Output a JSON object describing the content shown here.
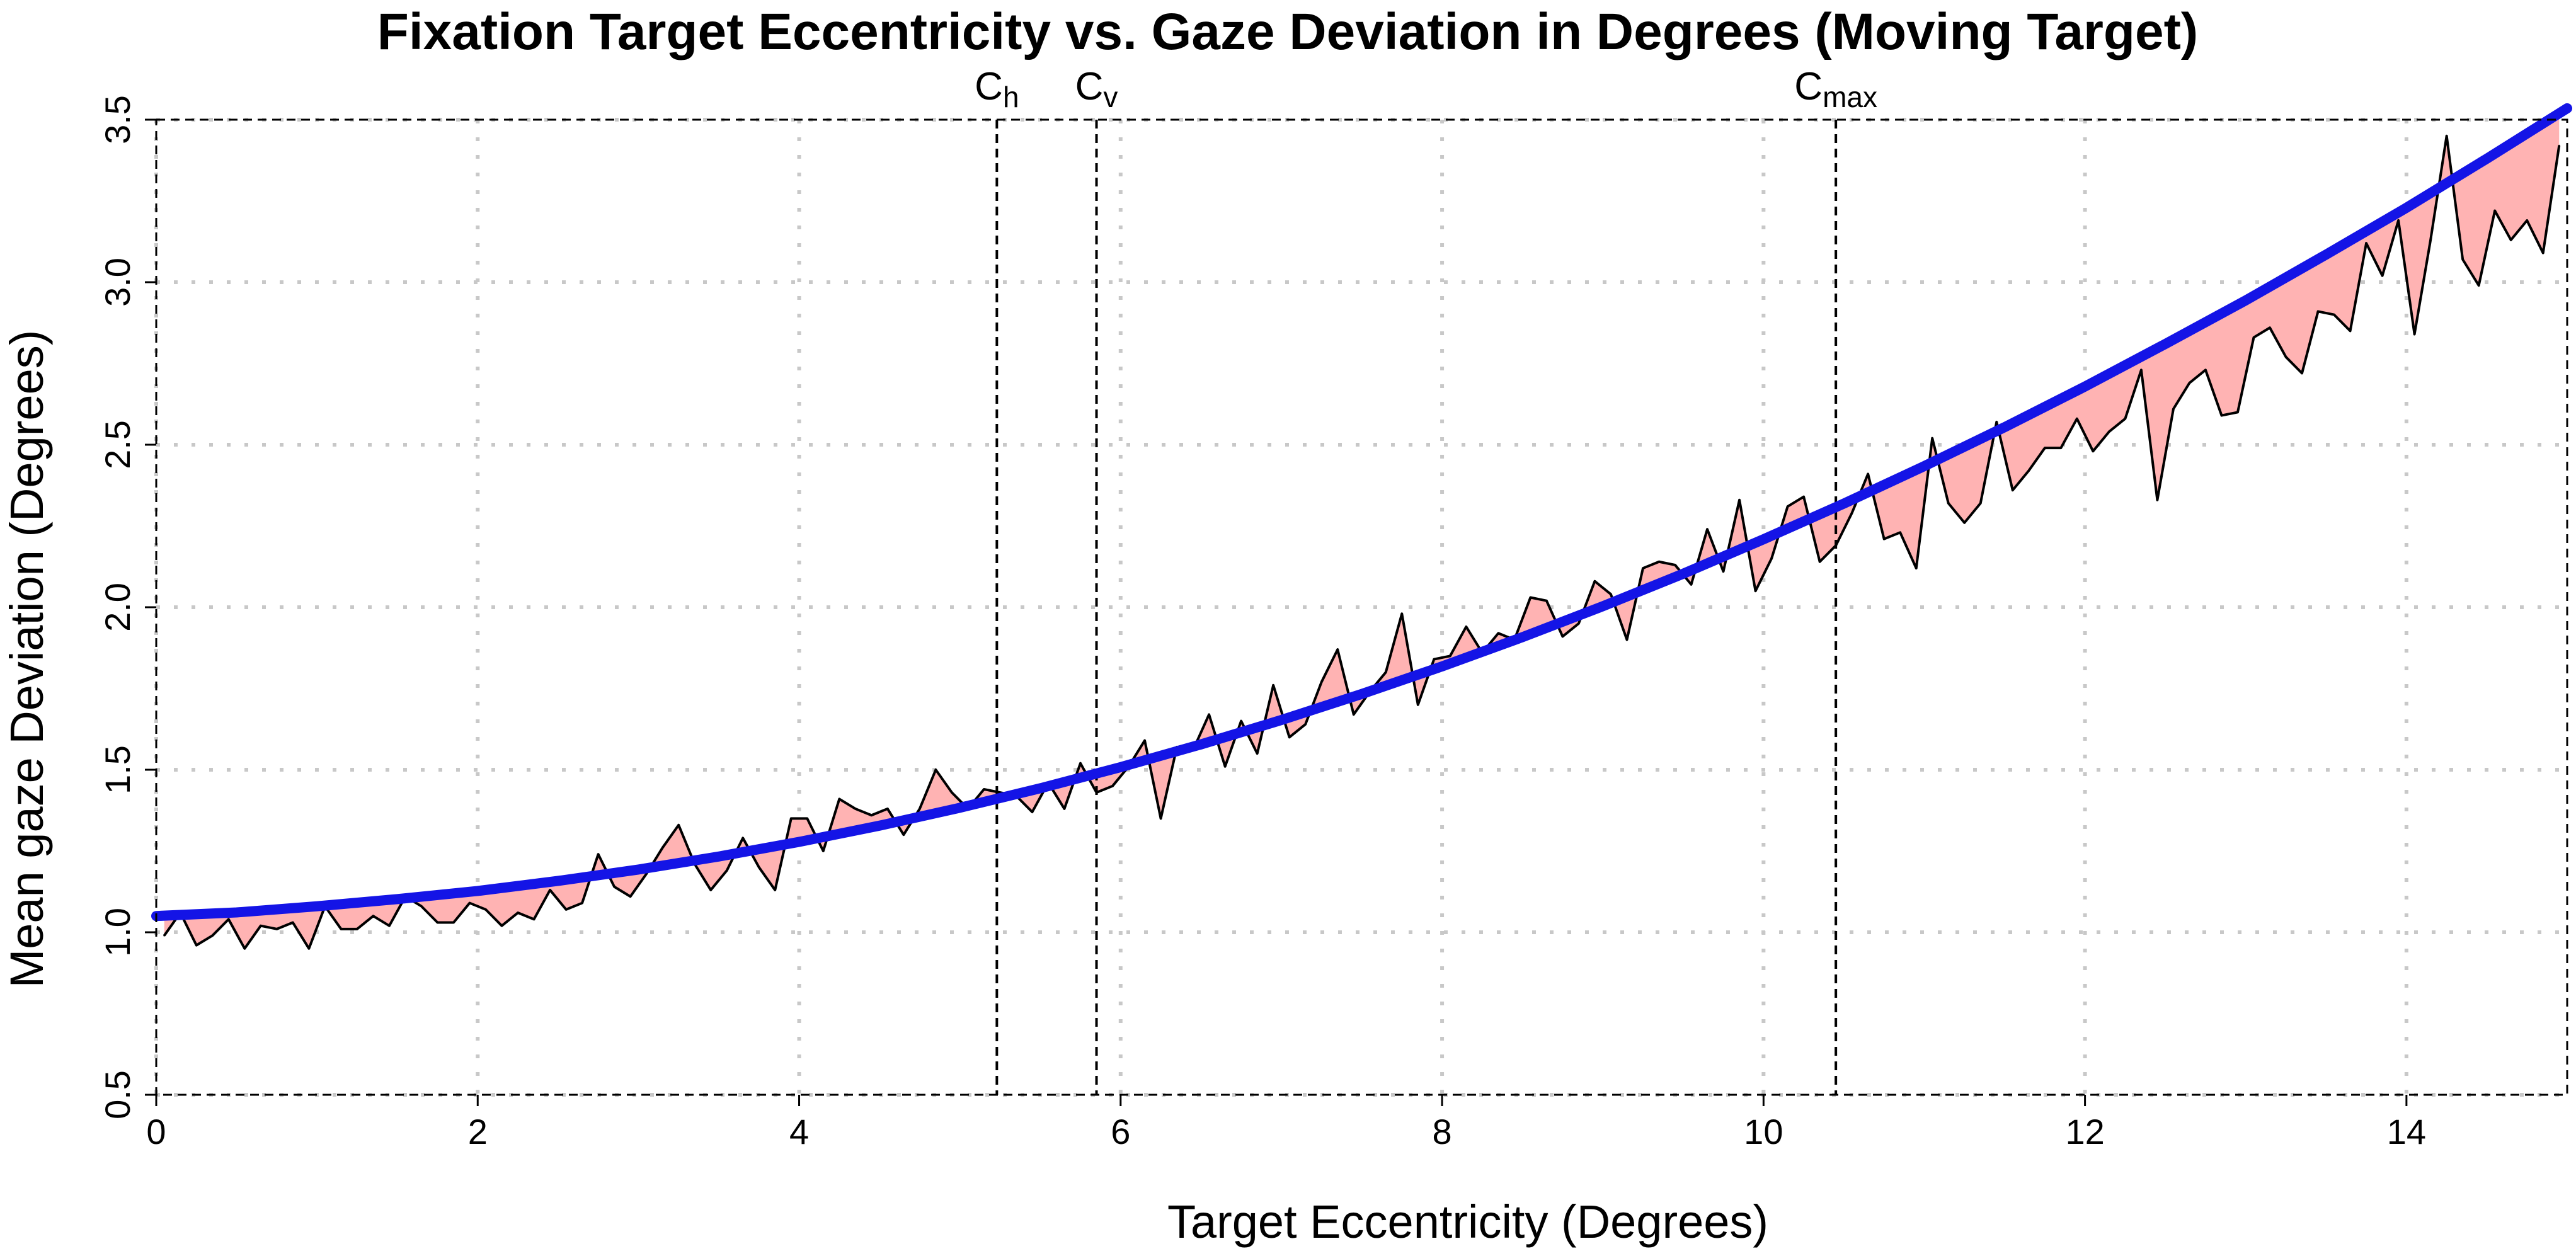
{
  "chart_data": {
    "type": "line",
    "title": "Fixation Target Eccentricity vs. Gaze Deviation in Degrees (Moving Target)",
    "xlabel": "Target Eccentricity (Degrees)",
    "ylabel": "Mean gaze Deviation (Degrees)",
    "xlim": [
      0,
      15
    ],
    "ylim": [
      0.5,
      3.5
    ],
    "x_ticks": [
      0,
      2,
      4,
      6,
      8,
      10,
      12,
      14
    ],
    "x_tick_labels": [
      "0",
      "2",
      "4",
      "6",
      "8",
      "10",
      "12",
      "14"
    ],
    "y_ticks": [
      0.5,
      1.0,
      1.5,
      2.0,
      2.5,
      3.0,
      3.5
    ],
    "y_tick_labels": [
      "0.5",
      "1.0",
      "1.5",
      "2.0",
      "2.5",
      "3.0",
      "3.5"
    ],
    "grid": "dotted",
    "vertical_lines": [
      {
        "name": "C",
        "sub": "h",
        "x": 5.23
      },
      {
        "name": "C",
        "sub": "v",
        "x": 5.85
      },
      {
        "name": "C",
        "sub": "max",
        "x": 10.45
      }
    ],
    "series": [
      {
        "name": "observed",
        "style": "black line, pink shaded area to fitted curve",
        "x": [
          0.05,
          0.15,
          0.25,
          0.35,
          0.45,
          0.55,
          0.65,
          0.75,
          0.85,
          0.95,
          1.05,
          1.15,
          1.25,
          1.35,
          1.45,
          1.55,
          1.65,
          1.75,
          1.85,
          1.95,
          2.05,
          2.15,
          2.25,
          2.35,
          2.45,
          2.55,
          2.65,
          2.75,
          2.85,
          2.95,
          3.05,
          3.15,
          3.25,
          3.35,
          3.45,
          3.55,
          3.65,
          3.75,
          3.85,
          3.95,
          4.05,
          4.15,
          4.25,
          4.35,
          4.45,
          4.55,
          4.65,
          4.75,
          4.85,
          4.95,
          5.05,
          5.15,
          5.25,
          5.35,
          5.45,
          5.55,
          5.65,
          5.75,
          5.85,
          5.95,
          6.05,
          6.15,
          6.25,
          6.35,
          6.45,
          6.55,
          6.65,
          6.75,
          6.85,
          6.95,
          7.05,
          7.15,
          7.25,
          7.35,
          7.45,
          7.55,
          7.65,
          7.75,
          7.85,
          7.95,
          8.05,
          8.15,
          8.25,
          8.35,
          8.45,
          8.55,
          8.65,
          8.75,
          8.85,
          8.95,
          9.05,
          9.15,
          9.25,
          9.35,
          9.45,
          9.55,
          9.65,
          9.75,
          9.85,
          9.95,
          10.05,
          10.15,
          10.25,
          10.35,
          10.45,
          10.55,
          10.65,
          10.75,
          10.85,
          10.95,
          11.05,
          11.15,
          11.25,
          11.35,
          11.45,
          11.55,
          11.65,
          11.75,
          11.85,
          11.95,
          12.05,
          12.15,
          12.25,
          12.35,
          12.45,
          12.55,
          12.65,
          12.75,
          12.85,
          12.95,
          13.05,
          13.15,
          13.25,
          13.35,
          13.45,
          13.55,
          13.65,
          13.75,
          13.85,
          13.95,
          14.05,
          14.15,
          14.25,
          14.35,
          14.45,
          14.55,
          14.65,
          14.75,
          14.85,
          14.95
        ],
        "y": [
          0.99,
          1.06,
          0.96,
          0.99,
          1.04,
          0.95,
          1.02,
          1.01,
          1.03,
          0.95,
          1.08,
          1.01,
          1.01,
          1.05,
          1.02,
          1.11,
          1.08,
          1.03,
          1.03,
          1.09,
          1.07,
          1.02,
          1.06,
          1.04,
          1.13,
          1.07,
          1.09,
          1.24,
          1.14,
          1.11,
          1.18,
          1.26,
          1.33,
          1.21,
          1.13,
          1.19,
          1.29,
          1.2,
          1.13,
          1.35,
          1.35,
          1.25,
          1.41,
          1.38,
          1.36,
          1.38,
          1.3,
          1.38,
          1.5,
          1.43,
          1.38,
          1.44,
          1.43,
          1.42,
          1.37,
          1.46,
          1.38,
          1.52,
          1.43,
          1.45,
          1.51,
          1.59,
          1.35,
          1.57,
          1.56,
          1.67,
          1.51,
          1.65,
          1.55,
          1.76,
          1.6,
          1.64,
          1.77,
          1.87,
          1.67,
          1.74,
          1.8,
          1.98,
          1.7,
          1.84,
          1.85,
          1.94,
          1.86,
          1.92,
          1.9,
          2.03,
          2.02,
          1.91,
          1.95,
          2.08,
          2.04,
          1.9,
          2.12,
          2.14,
          2.13,
          2.07,
          2.24,
          2.11,
          2.33,
          2.05,
          2.15,
          2.31,
          2.34,
          2.14,
          2.19,
          2.29,
          2.41,
          2.21,
          2.23,
          2.12,
          2.52,
          2.32,
          2.26,
          2.32,
          2.57,
          2.36,
          2.42,
          2.49,
          2.49,
          2.58,
          2.48,
          2.54,
          2.58,
          2.73,
          2.33,
          2.61,
          2.69,
          2.73,
          2.59,
          2.6,
          2.83,
          2.86,
          2.77,
          2.72,
          2.91,
          2.9,
          2.85,
          3.12,
          3.02,
          3.19,
          2.84,
          3.13,
          3.45,
          3.07,
          2.99,
          3.22,
          3.13,
          3.19,
          3.09,
          3.42
        ]
      },
      {
        "name": "fitted",
        "style": "thick blue curve",
        "x": [
          0.0,
          0.5,
          1.0,
          1.5,
          2.0,
          2.5,
          3.0,
          3.5,
          4.0,
          4.5,
          5.0,
          5.5,
          6.0,
          6.5,
          7.0,
          7.5,
          8.0,
          8.5,
          9.0,
          9.5,
          10.0,
          10.5,
          11.0,
          11.5,
          12.0,
          12.5,
          13.0,
          13.5,
          14.0,
          14.5,
          15.0
        ],
        "y": [
          1.05,
          1.061,
          1.08,
          1.102,
          1.127,
          1.158,
          1.193,
          1.233,
          1.278,
          1.328,
          1.383,
          1.443,
          1.508,
          1.578,
          1.653,
          1.733,
          1.818,
          1.908,
          2.003,
          2.103,
          2.209,
          2.319,
          2.434,
          2.554,
          2.679,
          2.81,
          2.944,
          3.085,
          3.229,
          3.38,
          3.535
        ]
      }
    ]
  }
}
